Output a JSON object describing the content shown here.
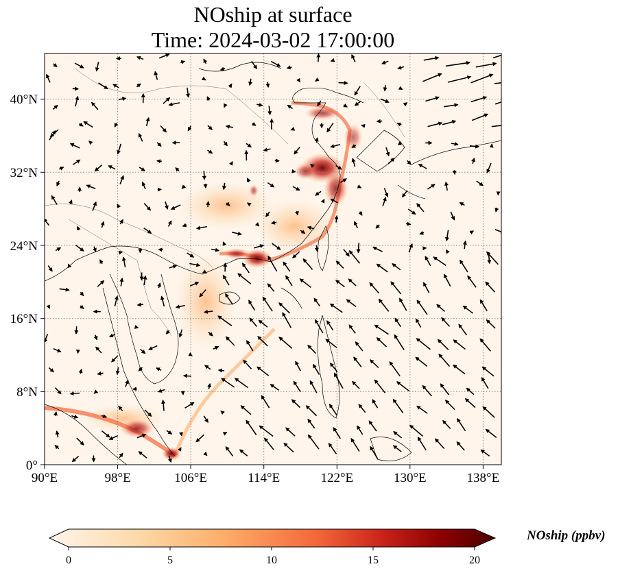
{
  "title": {
    "line1": "NOship at surface",
    "line2": "Time: 2024-03-02 17:00:00"
  },
  "colorbar": {
    "label": "NOship (ppbv)",
    "ticks": [
      "0",
      "5",
      "10",
      "15",
      "20"
    ],
    "min": 0,
    "max": 20,
    "colors": [
      "#fff5eb",
      "#fdd9a8",
      "#fdab67",
      "#f3673a",
      "#c8221a",
      "#8b0000",
      "#4a0000"
    ]
  },
  "map": {
    "lon_range": [
      90,
      140
    ],
    "lat_range": [
      0,
      45
    ],
    "lon_ticks": [
      "90°E",
      "98°E",
      "106°E",
      "114°E",
      "122°E",
      "130°E",
      "138°E"
    ],
    "lat_ticks": [
      "0°",
      "8°N",
      "16°N",
      "24°N",
      "32°N",
      "40°N"
    ],
    "gridlines": true,
    "background": "#fff5eb"
  }
}
